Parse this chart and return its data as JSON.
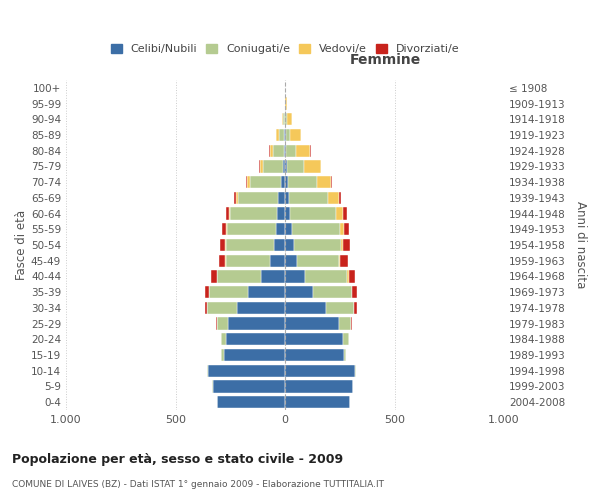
{
  "age_groups": [
    "0-4",
    "5-9",
    "10-14",
    "15-19",
    "20-24",
    "25-29",
    "30-34",
    "35-39",
    "40-44",
    "45-49",
    "50-54",
    "55-59",
    "60-64",
    "65-69",
    "70-74",
    "75-79",
    "80-84",
    "85-89",
    "90-94",
    "95-99",
    "100+"
  ],
  "birth_years": [
    "2004-2008",
    "1999-2003",
    "1994-1998",
    "1989-1993",
    "1984-1988",
    "1979-1983",
    "1974-1978",
    "1969-1973",
    "1964-1968",
    "1959-1963",
    "1954-1958",
    "1949-1953",
    "1944-1948",
    "1939-1943",
    "1934-1938",
    "1929-1933",
    "1924-1928",
    "1919-1923",
    "1914-1918",
    "1909-1913",
    "≤ 1908"
  ],
  "males": {
    "celibi": [
      310,
      330,
      350,
      280,
      270,
      260,
      220,
      170,
      110,
      70,
      50,
      40,
      35,
      30,
      20,
      10,
      5,
      4,
      2,
      0,
      0
    ],
    "coniugati": [
      0,
      2,
      5,
      10,
      20,
      50,
      135,
      175,
      200,
      200,
      220,
      225,
      215,
      185,
      140,
      90,
      50,
      25,
      8,
      2,
      0
    ],
    "vedovi": [
      0,
      0,
      0,
      0,
      0,
      0,
      0,
      2,
      2,
      2,
      2,
      3,
      5,
      8,
      15,
      15,
      15,
      10,
      5,
      0,
      0
    ],
    "divorziati": [
      0,
      0,
      0,
      0,
      2,
      3,
      10,
      20,
      25,
      30,
      25,
      20,
      15,
      10,
      5,
      3,
      2,
      0,
      0,
      0,
      0
    ]
  },
  "females": {
    "nubili": [
      295,
      310,
      320,
      270,
      265,
      245,
      185,
      130,
      90,
      55,
      40,
      30,
      25,
      20,
      15,
      8,
      5,
      3,
      2,
      0,
      0
    ],
    "coniugate": [
      0,
      2,
      5,
      10,
      25,
      55,
      130,
      175,
      195,
      190,
      215,
      220,
      210,
      175,
      130,
      80,
      45,
      20,
      8,
      2,
      0
    ],
    "vedove": [
      0,
      0,
      0,
      0,
      0,
      2,
      2,
      3,
      5,
      8,
      12,
      20,
      30,
      50,
      65,
      75,
      65,
      50,
      20,
      5,
      0
    ],
    "divorziate": [
      0,
      0,
      0,
      0,
      2,
      5,
      12,
      22,
      30,
      35,
      28,
      22,
      18,
      10,
      5,
      3,
      2,
      2,
      0,
      0,
      0
    ]
  },
  "colors": {
    "celibi": "#3C6EA6",
    "coniugati": "#B5CB91",
    "vedovi": "#F5C85A",
    "divorziati": "#C8231C"
  },
  "xlim": 1000,
  "title": "Popolazione per età, sesso e stato civile - 2009",
  "subtitle": "COMUNE DI LAIVES (BZ) - Dati ISTAT 1° gennaio 2009 - Elaborazione TUTTITALIA.IT",
  "ylabel_left": "Fasce di età",
  "ylabel_right": "Anni di nascita",
  "xlabel_right": "Femmine",
  "legend_labels": [
    "Celibi/Nubili",
    "Coniugati/e",
    "Vedovi/e",
    "Divorziati/e"
  ],
  "background_color": "#ffffff",
  "grid_color": "#cccccc"
}
